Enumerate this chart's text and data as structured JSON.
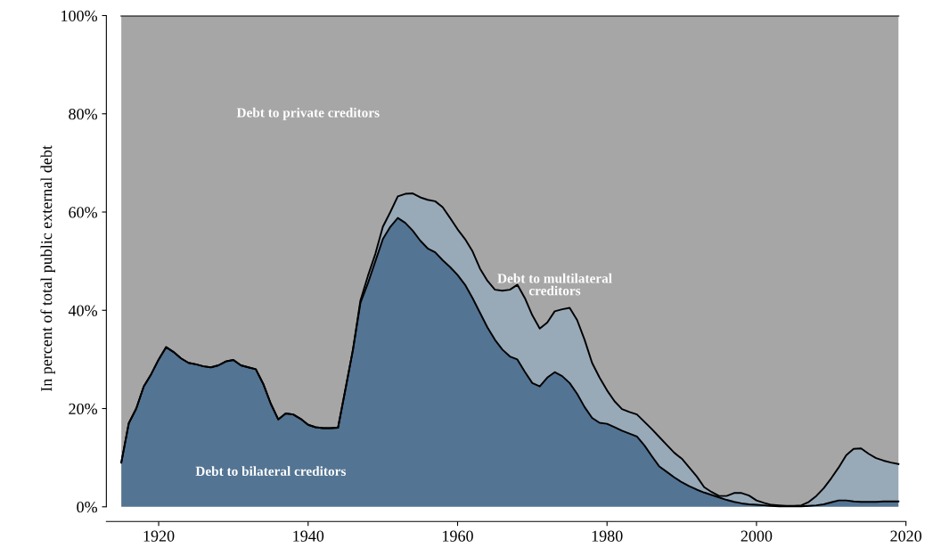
{
  "chart_data": {
    "type": "area",
    "stacked": true,
    "ylabel": "In percent of total public external debt",
    "xlim": [
      1913,
      2020
    ],
    "ylim": [
      -3,
      100
    ],
    "xticks": [
      1920,
      1940,
      1960,
      1980,
      2000,
      2020
    ],
    "yticks": [
      {
        "value": 0,
        "label": "0%"
      },
      {
        "value": 20,
        "label": "20%"
      },
      {
        "value": 40,
        "label": "40%"
      },
      {
        "value": 60,
        "label": "60%"
      },
      {
        "value": 80,
        "label": "80%"
      },
      {
        "value": 100,
        "label": "100%"
      }
    ],
    "grid": false,
    "legend": false,
    "x": [
      1915,
      1916,
      1917,
      1918,
      1919,
      1920,
      1921,
      1922,
      1923,
      1924,
      1925,
      1926,
      1927,
      1928,
      1929,
      1930,
      1931,
      1932,
      1933,
      1934,
      1935,
      1936,
      1937,
      1938,
      1939,
      1940,
      1941,
      1942,
      1943,
      1944,
      1945,
      1946,
      1947,
      1948,
      1949,
      1950,
      1951,
      1952,
      1953,
      1954,
      1955,
      1956,
      1957,
      1958,
      1959,
      1960,
      1961,
      1962,
      1963,
      1964,
      1965,
      1966,
      1967,
      1968,
      1969,
      1970,
      1971,
      1972,
      1973,
      1974,
      1975,
      1976,
      1977,
      1978,
      1979,
      1980,
      1981,
      1982,
      1983,
      1984,
      1985,
      1986,
      1987,
      1988,
      1989,
      1990,
      1991,
      1992,
      1993,
      1994,
      1995,
      1996,
      1997,
      1998,
      1999,
      2000,
      2001,
      2002,
      2003,
      2004,
      2005,
      2006,
      2007,
      2008,
      2009,
      2010,
      2011,
      2012,
      2013,
      2014,
      2015,
      2016,
      2017,
      2018,
      2019
    ],
    "series": [
      {
        "name": "Debt to bilateral creditors",
        "color": "#537493",
        "values": [
          9,
          17,
          20,
          24.5,
          27,
          30,
          32.5,
          31.5,
          30.2,
          29.3,
          29,
          28.6,
          28.4,
          28.8,
          29.6,
          29.9,
          28.8,
          28.4,
          28,
          25,
          21,
          17.8,
          19,
          18.8,
          17.9,
          16.7,
          16.2,
          16,
          16,
          16.1,
          24,
          32,
          41.5,
          45.5,
          50,
          54.5,
          57,
          58.8,
          57.8,
          56.2,
          54.2,
          52.6,
          51.8,
          50.2,
          48.8,
          47.2,
          45.2,
          42.5,
          39.5,
          36.5,
          34,
          32,
          30.6,
          30,
          27.5,
          25.2,
          24.5,
          26.3,
          27.4,
          26.6,
          25.2,
          23,
          20.3,
          18.1,
          17.1,
          16.9,
          16.2,
          15.5,
          14.9,
          14.3,
          12.5,
          10.3,
          8.2,
          7.1,
          6,
          5,
          4.2,
          3.5,
          2.9,
          2.4,
          1.9,
          1.4,
          1,
          0.7,
          0.5,
          0.4,
          0.3,
          0.2,
          0.1,
          0.1,
          0.1,
          0.1,
          0.2,
          0.3,
          0.5,
          0.9,
          1.3,
          1.3,
          1.1,
          1,
          1,
          1,
          1.1,
          1.1,
          1.1
        ]
      },
      {
        "name": "Debt to multilateral creditors",
        "color": "#98a9b8",
        "values": [
          0,
          0,
          0,
          0,
          0,
          0,
          0,
          0,
          0,
          0,
          0,
          0,
          0,
          0,
          0,
          0,
          0,
          0,
          0,
          0,
          0,
          0,
          0,
          0,
          0,
          0,
          0,
          0,
          0,
          0,
          0,
          0,
          0.5,
          1.5,
          1.5,
          2.5,
          3,
          4.4,
          5.9,
          7.6,
          8.8,
          9.9,
          10.4,
          10.8,
          10,
          9.3,
          9.3,
          9.5,
          9,
          9.5,
          10.2,
          12,
          13.6,
          15.2,
          15,
          13.8,
          11.8,
          11.2,
          12.4,
          13.6,
          15.3,
          15,
          13.7,
          11.2,
          9.2,
          6.8,
          5.3,
          4.4,
          4.4,
          4.5,
          4.8,
          5.5,
          6,
          5.5,
          5,
          4.8,
          3.8,
          2.7,
          1.1,
          0.6,
          0.3,
          0.8,
          1.8,
          2.1,
          1.8,
          0.9,
          0.5,
          0.2,
          0.2,
          0.1,
          0.1,
          0.2,
          0.8,
          1.9,
          3.3,
          4.9,
          6.7,
          9.2,
          10.7,
          10.9,
          9.8,
          8.9,
          8.3,
          7.9,
          7.6
        ]
      },
      {
        "name": "Debt to private creditors",
        "color": "#a6a6a6",
        "values": [
          91,
          83,
          80,
          75.5,
          73,
          70,
          67.5,
          68.5,
          69.8,
          70.7,
          71,
          71.4,
          71.6,
          71.2,
          70.4,
          70.1,
          71.2,
          71.6,
          72,
          75,
          79,
          82.2,
          81,
          81.2,
          82.1,
          83.3,
          83.8,
          84,
          84,
          83.9,
          76,
          68,
          58,
          53,
          48.5,
          43,
          40,
          36.8,
          36.3,
          36.2,
          37,
          37.5,
          37.8,
          39,
          41.2,
          43.5,
          45.5,
          48,
          51.5,
          54,
          55.8,
          56,
          55.8,
          54.8,
          57.5,
          61,
          63.7,
          62.5,
          60.2,
          59.8,
          59.5,
          62,
          66,
          70.7,
          73.7,
          76.3,
          78.5,
          80.1,
          80.7,
          81.2,
          82.7,
          84.2,
          85.8,
          87.4,
          89,
          90.2,
          92,
          93.8,
          96,
          97,
          97.8,
          97.8,
          97.2,
          97.2,
          97.7,
          98.7,
          99.2,
          99.6,
          99.7,
          99.8,
          99.8,
          99.7,
          99,
          97.8,
          96.2,
          94.2,
          92,
          89.5,
          88.2,
          88.1,
          89.2,
          90.1,
          90.6,
          91,
          91.3
        ]
      }
    ]
  }
}
